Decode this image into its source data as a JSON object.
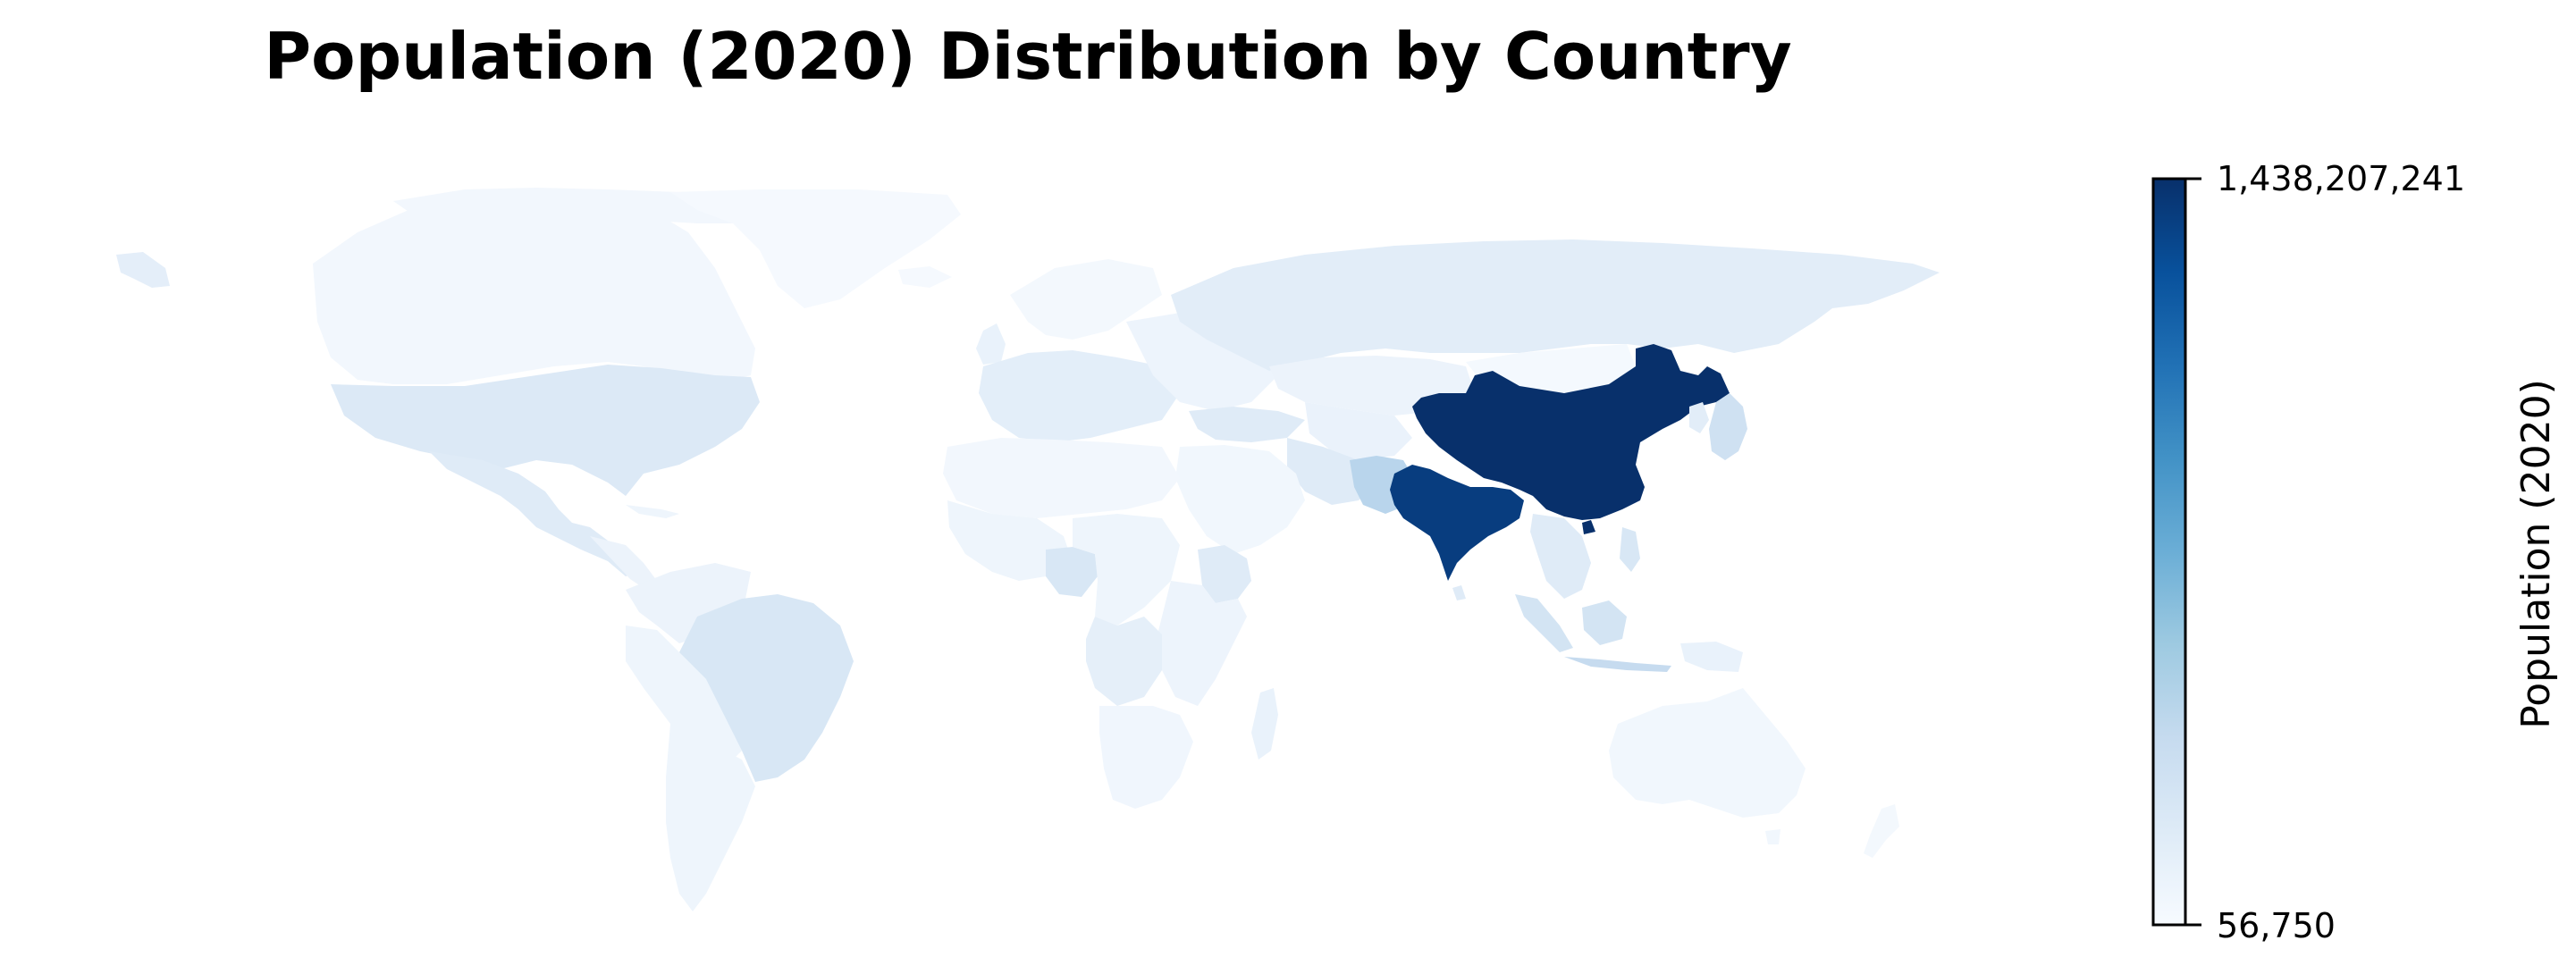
{
  "title": "Population (2020) Distribution by Country",
  "colorbar": {
    "label": "Population (2020)",
    "max_label": "1,438,207,241",
    "min_label": "56,750",
    "min_value": 56750,
    "max_value": 1438207241,
    "colormap": "Blues",
    "colors": [
      "#f7fbff",
      "#deebf7",
      "#c6dbef",
      "#9ecae1",
      "#6baed6",
      "#4292c6",
      "#2171b5",
      "#08519c",
      "#08306b"
    ]
  },
  "highlighted_countries": [
    {
      "name": "China",
      "value": 1438207241
    },
    {
      "name": "India",
      "value": 1380004385
    }
  ]
}
